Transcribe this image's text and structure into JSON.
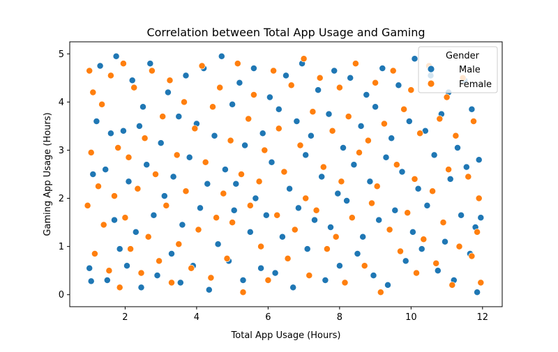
{
  "chart_data": {
    "type": "scatter",
    "title": "Correlation between Total App Usage and Gaming",
    "xlabel": "Total App Usage (Hours)",
    "ylabel": "Gaming App Usage (Hours)",
    "xlim": [
      0.45,
      12.55
    ],
    "ylim": [
      -0.25,
      5.25
    ],
    "xticks": [
      2,
      4,
      6,
      8,
      10,
      12
    ],
    "yticks": [
      0,
      1,
      2,
      3,
      4,
      5
    ],
    "grid": false,
    "legend": {
      "title": "Gender",
      "placement": "top-right"
    },
    "series": [
      {
        "name": "Male",
        "color": "#1f77b4",
        "points": [
          [
            1.0,
            0.55
          ],
          [
            1.05,
            0.28
          ],
          [
            1.1,
            2.5
          ],
          [
            1.2,
            3.6
          ],
          [
            1.3,
            4.75
          ],
          [
            1.45,
            2.6
          ],
          [
            1.5,
            0.3
          ],
          [
            1.6,
            3.35
          ],
          [
            1.7,
            1.55
          ],
          [
            1.75,
            4.95
          ],
          [
            1.85,
            0.95
          ],
          [
            1.95,
            3.4
          ],
          [
            2.05,
            0.6
          ],
          [
            2.1,
            2.35
          ],
          [
            2.2,
            4.45
          ],
          [
            2.3,
            1.3
          ],
          [
            2.4,
            3.5
          ],
          [
            2.45,
            0.15
          ],
          [
            2.5,
            3.9
          ],
          [
            2.6,
            2.7
          ],
          [
            2.7,
            4.8
          ],
          [
            2.8,
            1.65
          ],
          [
            2.9,
            0.4
          ],
          [
            3.0,
            3.15
          ],
          [
            3.1,
            2.05
          ],
          [
            3.2,
            4.2
          ],
          [
            3.3,
            0.85
          ],
          [
            3.35,
            2.45
          ],
          [
            3.5,
            3.7
          ],
          [
            3.55,
            0.25
          ],
          [
            3.6,
            1.45
          ],
          [
            3.7,
            4.55
          ],
          [
            3.8,
            2.85
          ],
          [
            3.9,
            0.6
          ],
          [
            4.0,
            3.55
          ],
          [
            4.1,
            1.8
          ],
          [
            4.2,
            4.7
          ],
          [
            4.3,
            2.3
          ],
          [
            4.35,
            0.1
          ],
          [
            4.5,
            3.3
          ],
          [
            4.6,
            1.05
          ],
          [
            4.7,
            4.95
          ],
          [
            4.8,
            2.6
          ],
          [
            4.9,
            0.7
          ],
          [
            5.0,
            3.95
          ],
          [
            5.05,
            1.75
          ],
          [
            5.1,
            2.3
          ],
          [
            5.2,
            4.4
          ],
          [
            5.3,
            0.3
          ],
          [
            5.35,
            3.1
          ],
          [
            5.5,
            1.3
          ],
          [
            5.6,
            4.7
          ],
          [
            5.65,
            2.0
          ],
          [
            5.8,
            0.55
          ],
          [
            5.85,
            3.35
          ],
          [
            5.95,
            1.65
          ],
          [
            6.05,
            4.1
          ],
          [
            6.1,
            2.75
          ],
          [
            6.2,
            0.45
          ],
          [
            6.3,
            3.85
          ],
          [
            6.4,
            1.2
          ],
          [
            6.5,
            4.55
          ],
          [
            6.6,
            2.2
          ],
          [
            6.7,
            0.15
          ],
          [
            6.8,
            3.6
          ],
          [
            6.85,
            1.8
          ],
          [
            6.95,
            4.8
          ],
          [
            7.05,
            2.9
          ],
          [
            7.1,
            0.95
          ],
          [
            7.2,
            3.3
          ],
          [
            7.3,
            1.55
          ],
          [
            7.4,
            4.25
          ],
          [
            7.5,
            2.45
          ],
          [
            7.6,
            0.3
          ],
          [
            7.7,
            3.75
          ],
          [
            7.75,
            1.4
          ],
          [
            7.85,
            4.65
          ],
          [
            7.95,
            2.1
          ],
          [
            8.0,
            0.6
          ],
          [
            8.1,
            3.05
          ],
          [
            8.2,
            1.95
          ],
          [
            8.3,
            4.5
          ],
          [
            8.4,
            2.7
          ],
          [
            8.5,
            0.85
          ],
          [
            8.6,
            3.5
          ],
          [
            8.65,
            1.2
          ],
          [
            8.75,
            4.15
          ],
          [
            8.85,
            2.35
          ],
          [
            8.95,
            0.4
          ],
          [
            9.0,
            3.9
          ],
          [
            9.1,
            1.55
          ],
          [
            9.2,
            4.7
          ],
          [
            9.3,
            2.85
          ],
          [
            9.35,
            0.2
          ],
          [
            9.45,
            3.25
          ],
          [
            9.55,
            1.75
          ],
          [
            9.65,
            4.35
          ],
          [
            9.75,
            2.55
          ],
          [
            9.85,
            0.7
          ],
          [
            9.95,
            3.6
          ],
          [
            10.05,
            1.3
          ],
          [
            10.1,
            4.9
          ],
          [
            10.2,
            2.2
          ],
          [
            10.3,
            0.95
          ],
          [
            10.4,
            3.4
          ],
          [
            10.45,
            1.85
          ],
          [
            10.55,
            4.55
          ],
          [
            10.65,
            2.9
          ],
          [
            10.75,
            0.5
          ],
          [
            10.85,
            3.75
          ],
          [
            10.95,
            1.1
          ],
          [
            11.05,
            4.2
          ],
          [
            11.1,
            2.4
          ],
          [
            11.2,
            0.3
          ],
          [
            11.3,
            3.05
          ],
          [
            11.4,
            1.65
          ],
          [
            11.5,
            4.45
          ],
          [
            11.55,
            2.65
          ],
          [
            11.65,
            0.85
          ],
          [
            11.7,
            3.85
          ],
          [
            11.8,
            1.4
          ],
          [
            11.85,
            0.05
          ],
          [
            11.9,
            2.8
          ],
          [
            11.95,
            1.6
          ]
        ]
      },
      {
        "name": "Female",
        "color": "#ff7f0e",
        "points": [
          [
            0.95,
            1.85
          ],
          [
            1.0,
            4.65
          ],
          [
            1.05,
            2.95
          ],
          [
            1.1,
            4.2
          ],
          [
            1.15,
            0.85
          ],
          [
            1.25,
            2.25
          ],
          [
            1.35,
            3.95
          ],
          [
            1.4,
            1.45
          ],
          [
            1.55,
            0.5
          ],
          [
            1.6,
            4.55
          ],
          [
            1.7,
            2.05
          ],
          [
            1.8,
            3.05
          ],
          [
            1.85,
            0.15
          ],
          [
            1.95,
            4.8
          ],
          [
            2.0,
            1.6
          ],
          [
            2.1,
            2.85
          ],
          [
            2.15,
            0.95
          ],
          [
            2.25,
            4.3
          ],
          [
            2.35,
            2.2
          ],
          [
            2.45,
            0.45
          ],
          [
            2.55,
            3.25
          ],
          [
            2.65,
            1.2
          ],
          [
            2.75,
            4.65
          ],
          [
            2.85,
            2.5
          ],
          [
            2.95,
            0.7
          ],
          [
            3.05,
            3.7
          ],
          [
            3.15,
            1.85
          ],
          [
            3.25,
            4.45
          ],
          [
            3.3,
            0.25
          ],
          [
            3.45,
            2.9
          ],
          [
            3.5,
            1.05
          ],
          [
            3.65,
            4.0
          ],
          [
            3.7,
            2.15
          ],
          [
            3.85,
            0.55
          ],
          [
            3.95,
            3.45
          ],
          [
            4.05,
            1.35
          ],
          [
            4.15,
            4.75
          ],
          [
            4.25,
            2.75
          ],
          [
            4.4,
            0.35
          ],
          [
            4.45,
            3.9
          ],
          [
            4.55,
            1.6
          ],
          [
            4.65,
            4.3
          ],
          [
            4.75,
            2.1
          ],
          [
            4.85,
            0.75
          ],
          [
            4.95,
            3.2
          ],
          [
            5.0,
            1.5
          ],
          [
            5.15,
            4.8
          ],
          [
            5.25,
            2.5
          ],
          [
            5.3,
            0.05
          ],
          [
            5.45,
            3.65
          ],
          [
            5.5,
            1.85
          ],
          [
            5.6,
            4.15
          ],
          [
            5.75,
            2.35
          ],
          [
            5.8,
            1.0
          ],
          [
            5.9,
            3.0
          ],
          [
            6.0,
            0.3
          ],
          [
            6.15,
            4.65
          ],
          [
            6.25,
            1.65
          ],
          [
            6.3,
            3.45
          ],
          [
            6.45,
            2.55
          ],
          [
            6.55,
            0.75
          ],
          [
            6.65,
            4.35
          ],
          [
            6.75,
            1.35
          ],
          [
            6.9,
            3.1
          ],
          [
            7.0,
            4.9
          ],
          [
            7.05,
            2.0
          ],
          [
            7.15,
            0.4
          ],
          [
            7.25,
            3.8
          ],
          [
            7.35,
            1.75
          ],
          [
            7.45,
            4.5
          ],
          [
            7.55,
            2.65
          ],
          [
            7.65,
            0.95
          ],
          [
            7.8,
            3.4
          ],
          [
            7.9,
            1.2
          ],
          [
            8.0,
            4.3
          ],
          [
            8.05,
            2.35
          ],
          [
            8.15,
            0.25
          ],
          [
            8.25,
            3.7
          ],
          [
            8.35,
            1.6
          ],
          [
            8.45,
            4.8
          ],
          [
            8.55,
            2.95
          ],
          [
            8.7,
            0.6
          ],
          [
            8.8,
            3.2
          ],
          [
            8.9,
            1.9
          ],
          [
            9.0,
            4.4
          ],
          [
            9.05,
            2.25
          ],
          [
            9.15,
            0.05
          ],
          [
            9.25,
            3.55
          ],
          [
            9.4,
            1.35
          ],
          [
            9.5,
            4.65
          ],
          [
            9.6,
            2.7
          ],
          [
            9.7,
            0.9
          ],
          [
            9.8,
            3.85
          ],
          [
            9.9,
            1.7
          ],
          [
            10.0,
            4.25
          ],
          [
            10.1,
            2.4
          ],
          [
            10.15,
            0.45
          ],
          [
            10.25,
            3.35
          ],
          [
            10.35,
            1.15
          ],
          [
            10.5,
            4.75
          ],
          [
            10.6,
            2.15
          ],
          [
            10.7,
            0.65
          ],
          [
            10.8,
            3.65
          ],
          [
            10.9,
            1.5
          ],
          [
            11.0,
            4.1
          ],
          [
            11.05,
            2.6
          ],
          [
            11.15,
            0.2
          ],
          [
            11.25,
            3.3
          ],
          [
            11.35,
            1.0
          ],
          [
            11.45,
            4.5
          ],
          [
            11.6,
            2.45
          ],
          [
            11.7,
            0.8
          ],
          [
            11.75,
            3.6
          ],
          [
            11.85,
            1.3
          ],
          [
            11.9,
            2.0
          ],
          [
            11.95,
            0.25
          ]
        ]
      }
    ]
  }
}
